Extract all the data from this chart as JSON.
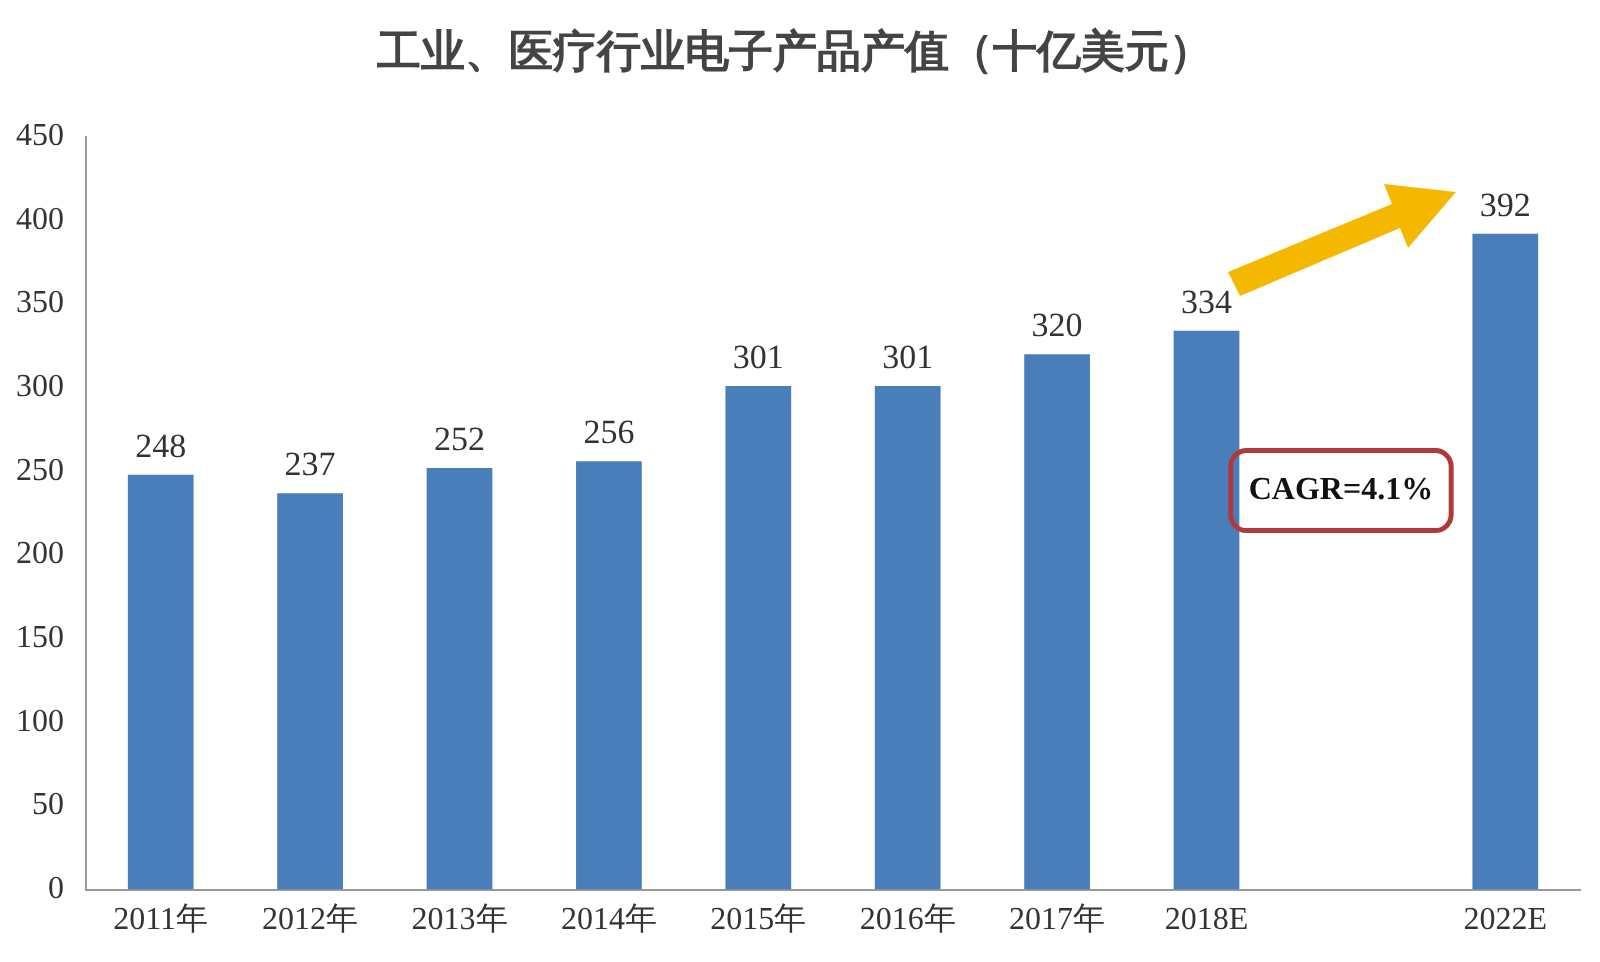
{
  "chart_data": {
    "type": "bar",
    "title": "工业、医疗行业电子产品产值（十亿美元）",
    "categories": [
      "2011年",
      "2012年",
      "2013年",
      "2014年",
      "2015年",
      "2016年",
      "2017年",
      "2018E",
      null,
      "2022E"
    ],
    "values": [
      248,
      237,
      252,
      256,
      301,
      301,
      320,
      334,
      null,
      392
    ],
    "color": "#4a7ebb",
    "ylim": [
      0,
      450
    ],
    "yticks": [
      0,
      50,
      100,
      150,
      200,
      250,
      300,
      350,
      400,
      450
    ],
    "grid": false,
    "legend": false,
    "data_labels": true,
    "annotations": [
      "CAGR=4.1%"
    ]
  }
}
